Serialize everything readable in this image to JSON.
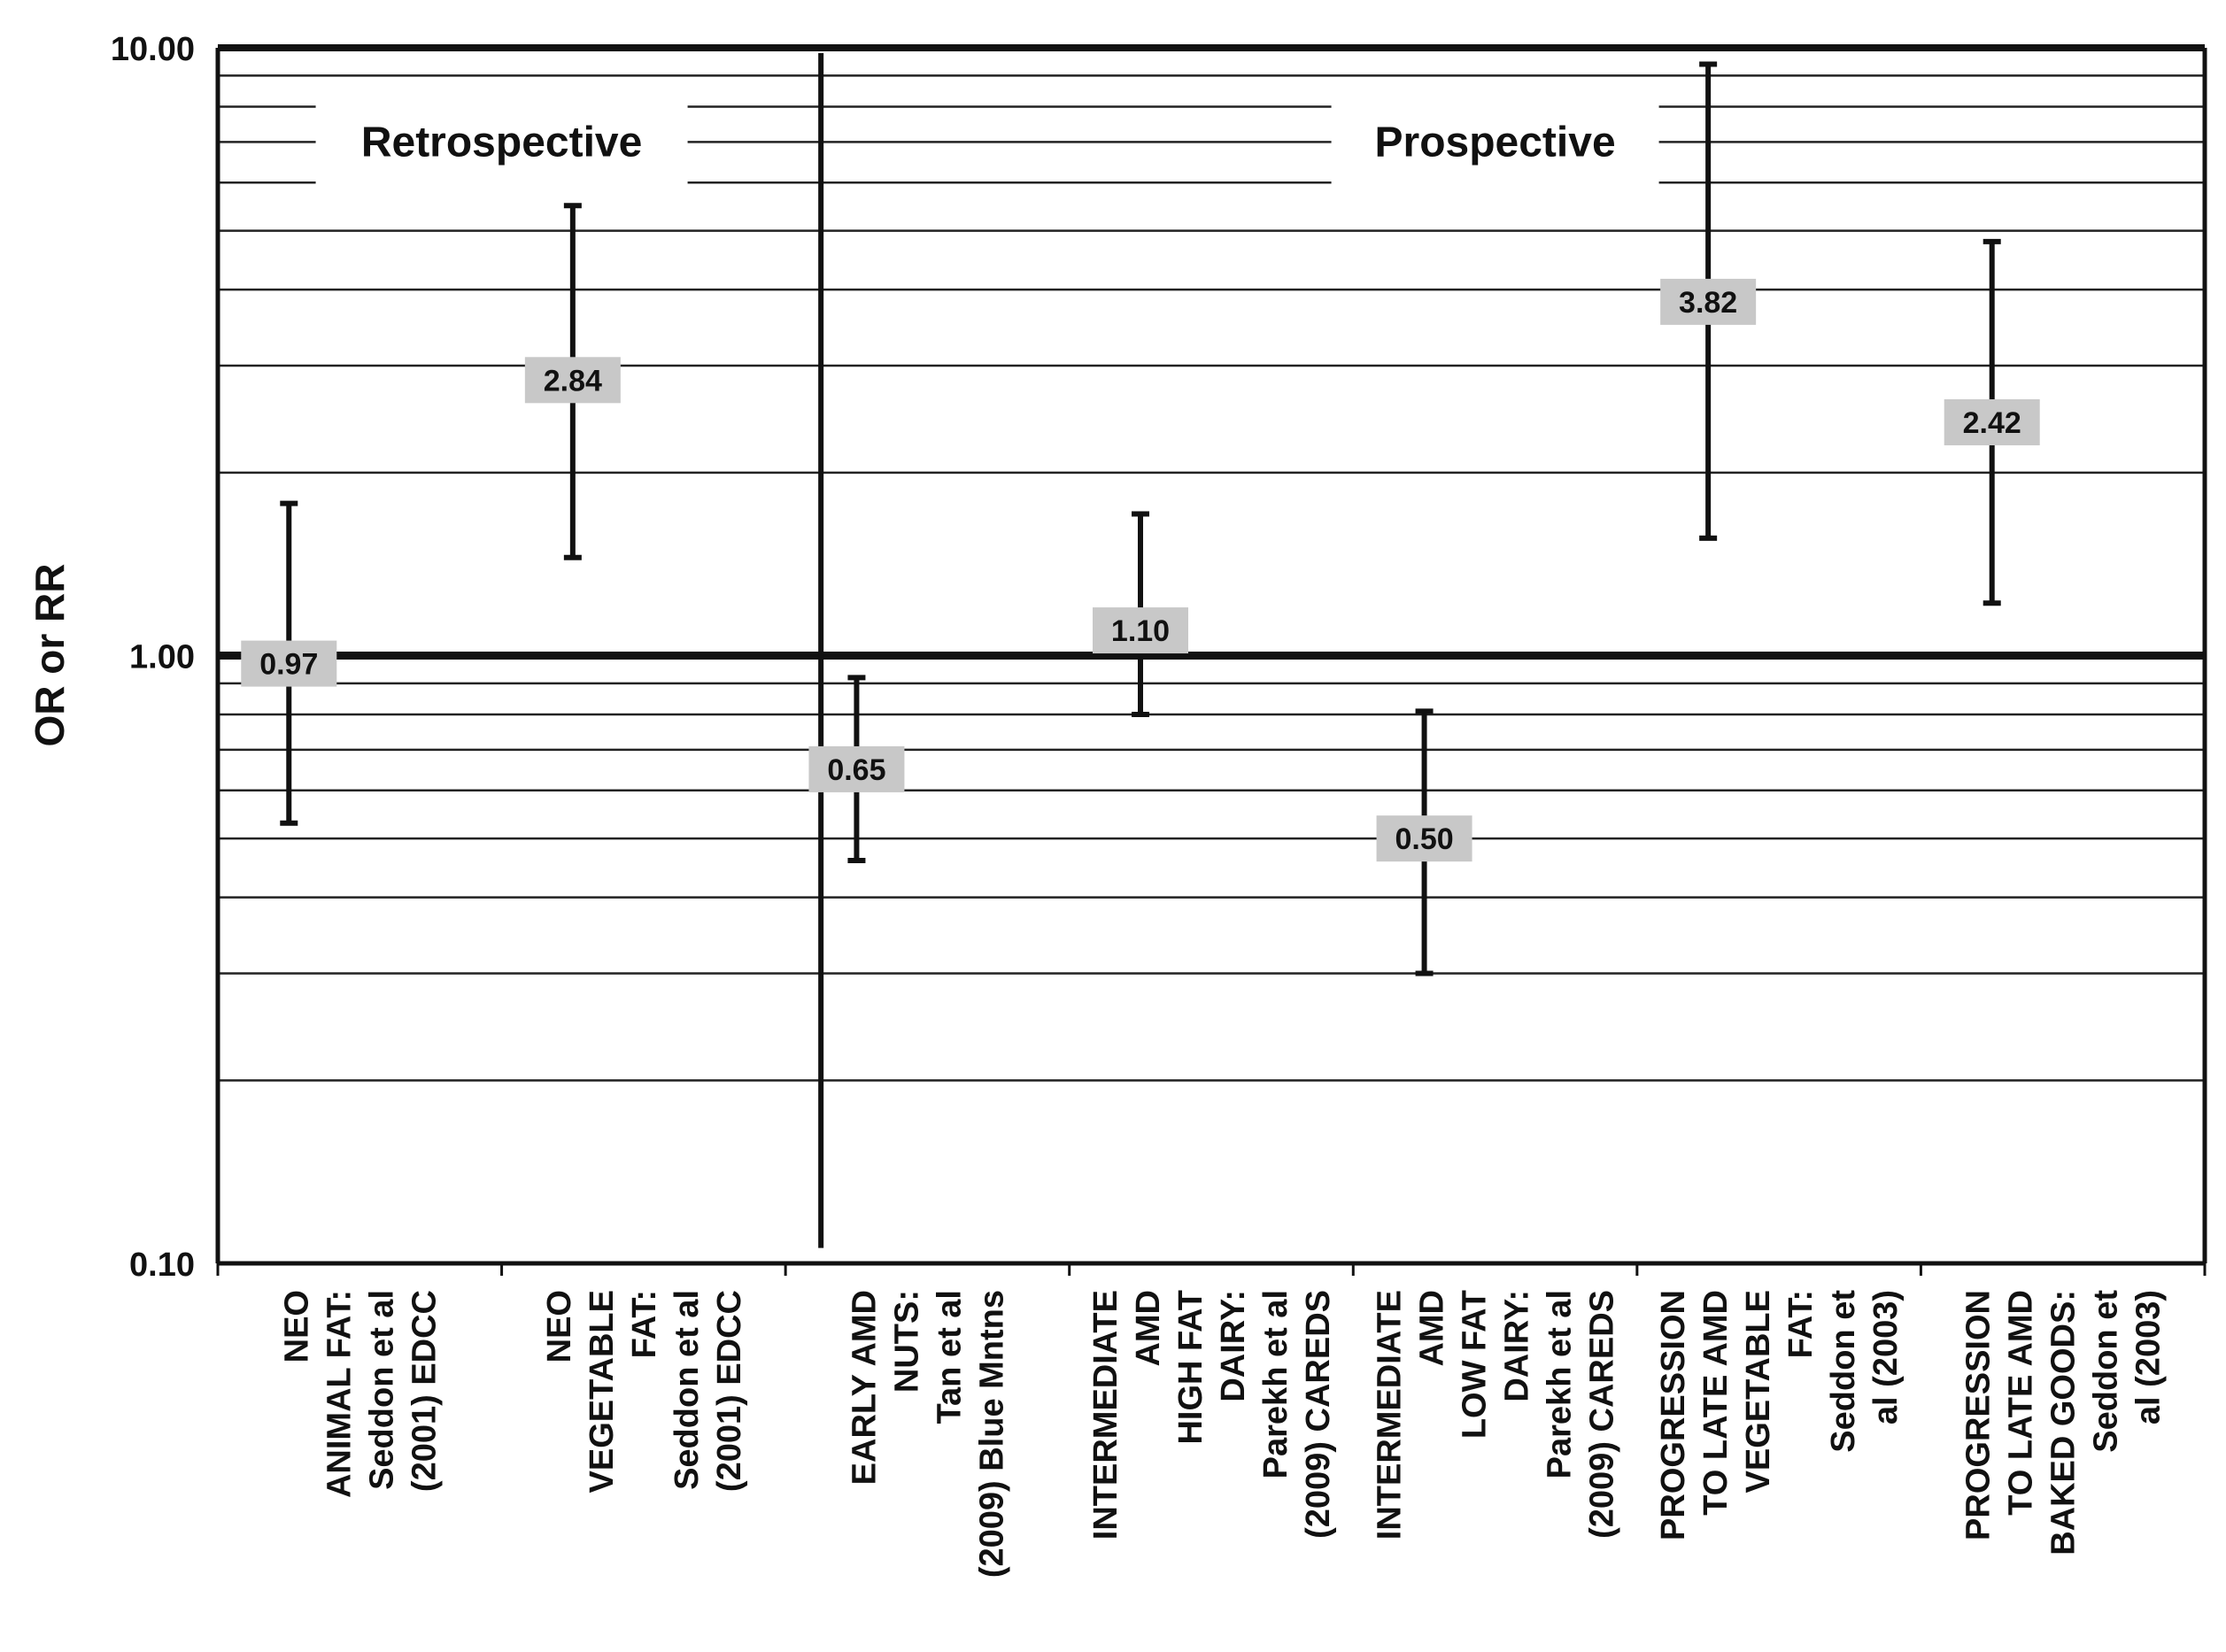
{
  "chart_data": {
    "type": "errorbar",
    "y_scale": "log",
    "ylabel": "OR or RR",
    "ylim": [
      0.1,
      10
    ],
    "y_ticks": [
      "0.10",
      "1.00",
      "10.00"
    ],
    "reference_line": 1.0,
    "sections": [
      {
        "name": "Retrospective",
        "categories": [
          0,
          1
        ]
      },
      {
        "name": "Prospective",
        "categories": [
          2,
          3,
          4,
          5,
          6
        ]
      }
    ],
    "categories": [
      [
        "NEO",
        "ANIMAL FAT:",
        "Seddon et al",
        "(2001) EDCC"
      ],
      [
        "NEO",
        "VEGETABLE",
        "FAT:",
        "Seddon et al",
        "(2001) EDCC"
      ],
      [
        "EARLY AMD",
        "NUTS:",
        "Tan et al",
        "(2009) Blue Mntns"
      ],
      [
        "INTERMEDIATE",
        "AMD",
        "HIGH FAT",
        "DAIRY:",
        "Parekh et al",
        "(2009) CAREDS"
      ],
      [
        "INTERMEDIATE",
        "AMD",
        "LOW FAT",
        "DAIRY:",
        "Parekh et al",
        "(2009) CAREDS"
      ],
      [
        "PROGRESSION",
        "TO LATE AMD",
        "VEGETABLE",
        "FAT:",
        "Seddon et",
        "al (2003)"
      ],
      [
        "PROGRESSION",
        "TO LATE AMD",
        "BAKED GOODS:",
        "Seddon et",
        "al (2003)"
      ]
    ],
    "points": [
      {
        "estimate": 0.97,
        "label": "0.97",
        "lower": 0.53,
        "upper": 1.78
      },
      {
        "estimate": 2.84,
        "label": "2.84",
        "lower": 1.45,
        "upper": 5.5
      },
      {
        "estimate": 0.65,
        "label": "0.65",
        "lower": 0.46,
        "upper": 0.92
      },
      {
        "estimate": 1.1,
        "label": "1.10",
        "lower": 0.8,
        "upper": 1.71
      },
      {
        "estimate": 0.5,
        "label": "0.50",
        "lower": 0.3,
        "upper": 0.81
      },
      {
        "estimate": 3.82,
        "label": "3.82",
        "lower": 1.56,
        "upper": 9.4
      },
      {
        "estimate": 2.42,
        "label": "2.42",
        "lower": 1.22,
        "upper": 4.8
      }
    ],
    "colors": {
      "line": "#111111",
      "label_box": "#c8c8c8",
      "grid": "#222222"
    }
  }
}
